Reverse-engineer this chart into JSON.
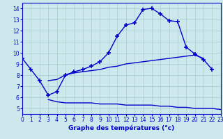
{
  "line1_x": [
    0,
    1,
    2,
    3,
    4,
    5,
    6,
    7,
    8,
    9,
    10,
    11,
    12,
    13,
    14,
    15,
    16,
    17,
    18,
    19,
    20,
    21,
    22
  ],
  "line1_y": [
    9.5,
    8.5,
    7.5,
    6.2,
    6.5,
    8.0,
    8.3,
    8.5,
    8.8,
    9.2,
    10.0,
    11.5,
    12.5,
    12.7,
    13.9,
    14.0,
    13.5,
    12.9,
    12.8,
    10.5,
    9.9,
    9.4,
    8.5
  ],
  "line2_x": [
    3,
    4,
    5,
    6,
    7,
    8,
    9,
    10,
    11,
    12,
    13,
    14,
    15,
    16,
    17,
    18,
    19,
    20,
    21,
    22,
    23
  ],
  "line2_y": [
    5.8,
    5.6,
    5.5,
    5.5,
    5.5,
    5.5,
    5.4,
    5.4,
    5.4,
    5.3,
    5.3,
    5.3,
    5.3,
    5.2,
    5.2,
    5.1,
    5.1,
    5.0,
    5.0,
    5.0,
    4.9
  ],
  "line3_x": [
    3,
    4,
    5,
    6,
    7,
    8,
    9,
    10,
    11,
    12,
    13,
    14,
    15,
    16,
    17,
    18,
    19,
    20,
    21
  ],
  "line3_y": [
    7.5,
    7.6,
    8.0,
    8.2,
    8.3,
    8.4,
    8.5,
    8.7,
    8.8,
    9.0,
    9.1,
    9.2,
    9.3,
    9.4,
    9.5,
    9.6,
    9.7,
    9.8,
    9.5
  ],
  "xlim": [
    0,
    23
  ],
  "ylim": [
    4.5,
    14.5
  ],
  "yticks": [
    5,
    6,
    7,
    8,
    9,
    10,
    11,
    12,
    13,
    14
  ],
  "xticks": [
    0,
    1,
    2,
    3,
    4,
    5,
    6,
    7,
    8,
    9,
    10,
    11,
    12,
    13,
    14,
    15,
    16,
    17,
    18,
    19,
    20,
    21,
    22,
    23
  ],
  "xlabel": "Graphe des températures (°c)",
  "line_color": "#0000cc",
  "bg_color": "#cce8ec",
  "grid_color": "#aacccc",
  "marker": "+",
  "marker_size": 4,
  "lw": 1.0
}
